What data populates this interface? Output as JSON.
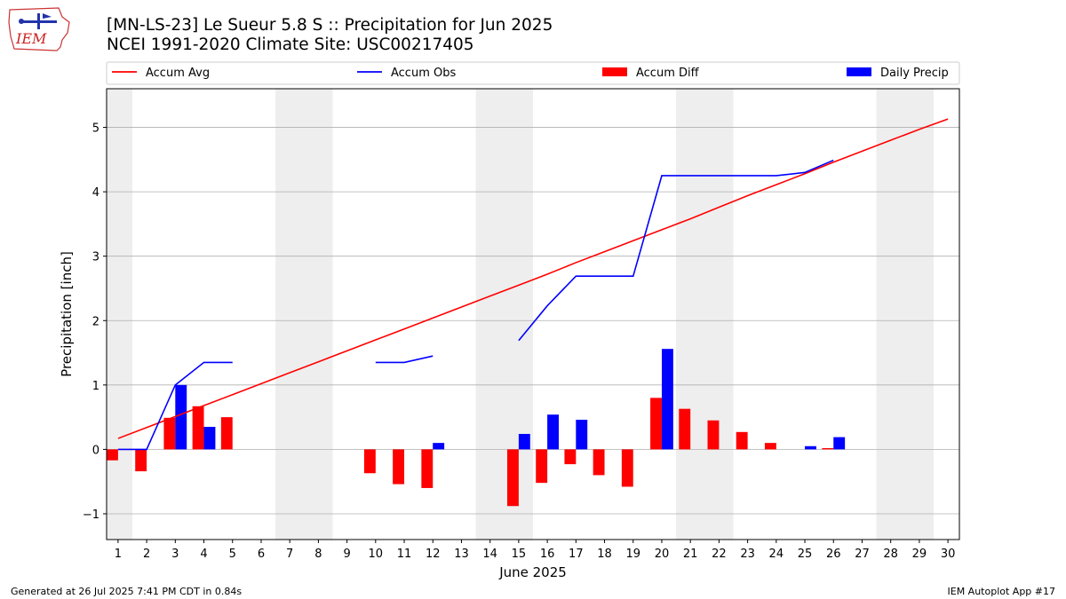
{
  "header": {
    "title_line1": "[MN-LS-23] Le Sueur 5.8 S :: Precipitation for Jun 2025",
    "title_line2": "NCEI 1991-2020 Climate Site: USC00217405",
    "logo_text": "IEM"
  },
  "footer": {
    "generated": "Generated at 26 Jul 2025 7:41 PM CDT in 0.84s",
    "app": "IEM Autoplot App #17"
  },
  "colors": {
    "avg": "#ff0000",
    "obs": "#0000ff",
    "diff": "#ff0000",
    "daily": "#0000ff",
    "weekend_shade": "#eeeeee",
    "grid": "#b0b0b0"
  },
  "chart_data": {
    "type": "bar",
    "xlabel": "June 2025",
    "ylabel": "Precipitation [inch]",
    "xlim": [
      0.6,
      30.4
    ],
    "ylim": [
      -1.4,
      5.6
    ],
    "yticks": [
      -1,
      0,
      1,
      2,
      3,
      4,
      5
    ],
    "ytick_labels": [
      "−1",
      "0",
      "1",
      "2",
      "3",
      "4",
      "5"
    ],
    "x": [
      1,
      2,
      3,
      4,
      5,
      6,
      7,
      8,
      9,
      10,
      11,
      12,
      13,
      14,
      15,
      16,
      17,
      18,
      19,
      20,
      21,
      22,
      23,
      24,
      25,
      26,
      27,
      28,
      29,
      30
    ],
    "grid": "horizontal",
    "legend_position": "top",
    "shaded_ranges": [
      [
        0.5,
        1.5
      ],
      [
        6.5,
        8.5
      ],
      [
        13.5,
        15.5
      ],
      [
        20.5,
        22.5
      ],
      [
        27.5,
        29.5
      ]
    ],
    "series": [
      {
        "name": "Accum Avg",
        "kind": "line",
        "values": [
          0.17,
          0.34,
          0.51,
          0.68,
          0.85,
          1.02,
          1.19,
          1.36,
          1.53,
          1.7,
          1.87,
          2.04,
          2.21,
          2.38,
          2.55,
          2.72,
          2.9,
          3.07,
          3.24,
          3.41,
          3.58,
          3.76,
          3.94,
          4.11,
          4.28,
          4.46,
          4.63,
          4.8,
          4.97,
          5.13
        ]
      },
      {
        "name": "Accum Obs",
        "kind": "line",
        "values": [
          0.0,
          0.0,
          1.0,
          1.35,
          1.35,
          null,
          null,
          null,
          null,
          1.35,
          1.35,
          1.45,
          null,
          null,
          1.69,
          2.23,
          2.69,
          2.69,
          2.69,
          4.25,
          4.25,
          4.25,
          4.25,
          4.25,
          4.3,
          4.49,
          null,
          null,
          null,
          null
        ]
      },
      {
        "name": "Accum Diff",
        "kind": "bar",
        "values": [
          -0.17,
          -0.34,
          0.49,
          0.67,
          0.5,
          null,
          null,
          null,
          null,
          -0.37,
          -0.54,
          -0.6,
          null,
          null,
          -0.88,
          -0.52,
          -0.23,
          -0.4,
          -0.58,
          0.8,
          0.63,
          0.45,
          0.27,
          0.1,
          null,
          0.02,
          null,
          null,
          null,
          null
        ]
      },
      {
        "name": "Daily Precip",
        "kind": "bar",
        "values": [
          0,
          0,
          1.0,
          0.35,
          0,
          null,
          null,
          null,
          null,
          0,
          0,
          0.1,
          null,
          null,
          0.24,
          0.54,
          0.46,
          0,
          0,
          1.56,
          0,
          0,
          0,
          0,
          0.05,
          0.19,
          null,
          null,
          null,
          null
        ]
      }
    ]
  }
}
